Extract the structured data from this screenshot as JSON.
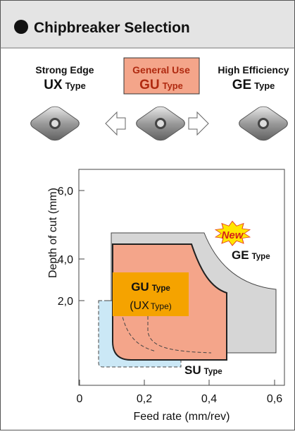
{
  "header": {
    "title": "Chipbreaker Selection"
  },
  "types": [
    {
      "label": "Strong Edge",
      "code": "UX",
      "suffix": "Type"
    },
    {
      "label": "General Use",
      "code": "GU",
      "suffix": "Type"
    },
    {
      "label": "High Efficiency",
      "code": "GE",
      "suffix": "Type"
    }
  ],
  "chart": {
    "y_label": "Depth of cut   (mm)",
    "x_label": "Feed rate   (mm/rev)",
    "yticks": [
      "2,0",
      "4,0",
      "6,0"
    ],
    "xticks": [
      "0",
      "0,2",
      "0,4",
      "0,6"
    ],
    "regions": [
      {
        "code": "GE",
        "suffix": "Type",
        "badge": "New"
      },
      {
        "code": "GU",
        "suffix": "Type",
        "alt_code": "(UX",
        "alt_suffix": "Type)"
      },
      {
        "code": "SU",
        "suffix": "Type"
      }
    ]
  }
}
